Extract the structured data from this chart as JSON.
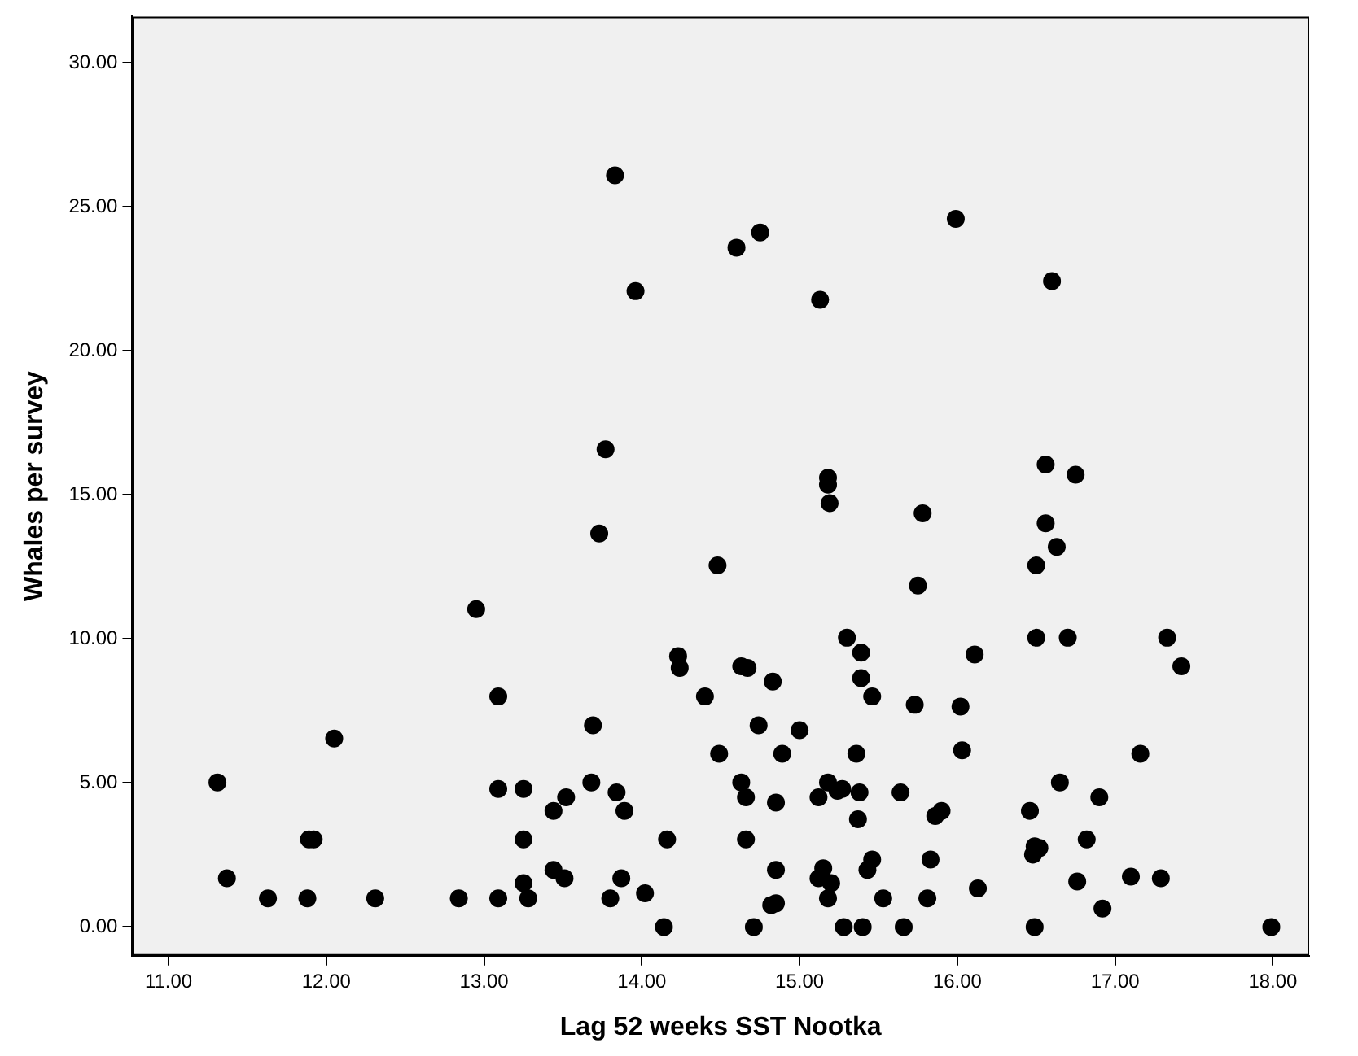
{
  "chart_data": {
    "type": "scatter",
    "xlabel": "Lag 52 weeks SST Nootka",
    "ylabel": "Whales per survey",
    "xlim": [
      10.77,
      18.23
    ],
    "ylim": [
      -1.0,
      31.6
    ],
    "xticks": [
      {
        "value": 11,
        "label": "11.00"
      },
      {
        "value": 12,
        "label": "12.00"
      },
      {
        "value": 13,
        "label": "13.00"
      },
      {
        "value": 14,
        "label": "14.00"
      },
      {
        "value": 15,
        "label": "15.00"
      },
      {
        "value": 16,
        "label": "16.00"
      },
      {
        "value": 17,
        "label": "17.00"
      },
      {
        "value": 18,
        "label": "18.00"
      }
    ],
    "yticks": [
      {
        "value": 0,
        "label": "0.00"
      },
      {
        "value": 5,
        "label": "5.00"
      },
      {
        "value": 10,
        "label": "10.00"
      },
      {
        "value": 15,
        "label": "15.00"
      },
      {
        "value": 20,
        "label": "20.00"
      },
      {
        "value": 25,
        "label": "25.00"
      },
      {
        "value": 30,
        "label": "30.00"
      }
    ],
    "grid": false,
    "legend": false,
    "marker": "circle",
    "series": [
      {
        "color": "#000000",
        "x": [
          12.95,
          13.09,
          13.69,
          12.05,
          11.31,
          13.09,
          13.25,
          13.52,
          13.44,
          13.68,
          13.84,
          13.89,
          11.89,
          11.92,
          13.25,
          11.37,
          13.44,
          13.51,
          13.25,
          13.87,
          11.63,
          11.88,
          12.31,
          12.84,
          13.09,
          13.28,
          13.8,
          13.83,
          15.99,
          14.75,
          14.6,
          13.96,
          15.13,
          16.6,
          13.77,
          13.73,
          14.48,
          15.18,
          15.18,
          15.19,
          15.78,
          15.75,
          16.56,
          16.75,
          16.56,
          16.63,
          16.5,
          15.3,
          15.39,
          14.23,
          14.24,
          14.63,
          14.67,
          14.83,
          16.11,
          15.39,
          15.46,
          14.4,
          15.73,
          16.02,
          14.74,
          15.0,
          14.49,
          14.89,
          15.36,
          16.03,
          14.63,
          14.66,
          14.85,
          15.18,
          15.12,
          15.24,
          15.27,
          15.38,
          15.64,
          15.37,
          15.86,
          15.9,
          14.16,
          14.66,
          14.02,
          14.14,
          14.85,
          15.15,
          15.12,
          15.2,
          15.18,
          15.46,
          15.43,
          15.83,
          14.82,
          14.85,
          15.53,
          15.81,
          16.13,
          14.71,
          15.28,
          15.4,
          15.66,
          16.46,
          16.49,
          16.48,
          16.52,
          16.49,
          16.5,
          16.7,
          16.65,
          16.9,
          16.82,
          16.76,
          17.1,
          17.29,
          16.92,
          17.16,
          17.33,
          17.42,
          17.99
        ],
        "values": [
          11.03,
          8.0,
          7.0,
          6.54,
          5.02,
          4.79,
          4.79,
          4.5,
          4.03,
          5.02,
          4.67,
          4.03,
          3.04,
          3.04,
          3.04,
          1.69,
          1.98,
          1.69,
          1.52,
          1.69,
          0.99,
          0.99,
          0.99,
          0.99,
          0.99,
          0.99,
          0.99,
          26.09,
          24.58,
          24.11,
          23.58,
          22.07,
          21.77,
          22.42,
          16.58,
          13.66,
          12.55,
          15.59,
          15.35,
          14.71,
          14.36,
          11.85,
          16.05,
          15.7,
          14.01,
          13.19,
          12.55,
          10.04,
          9.52,
          9.4,
          8.99,
          9.05,
          8.99,
          8.52,
          9.46,
          8.64,
          8.0,
          8.0,
          7.71,
          7.65,
          7.0,
          6.83,
          6.01,
          6.01,
          6.01,
          6.13,
          5.02,
          4.5,
          4.32,
          5.02,
          4.5,
          4.73,
          4.79,
          4.67,
          4.67,
          3.74,
          3.85,
          4.03,
          3.04,
          3.04,
          1.17,
          0,
          1.98,
          2.04,
          1.69,
          1.52,
          0.99,
          2.34,
          1.98,
          2.34,
          0.76,
          0.82,
          0.99,
          0.99,
          1.34,
          0,
          0,
          0,
          0,
          4.03,
          2.8,
          2.51,
          2.74,
          0,
          10.04,
          10.04,
          5.02,
          4.5,
          3.04,
          1.58,
          1.75,
          1.69,
          0.64,
          6.01,
          10.04,
          9.05,
          0
        ]
      }
    ]
  }
}
